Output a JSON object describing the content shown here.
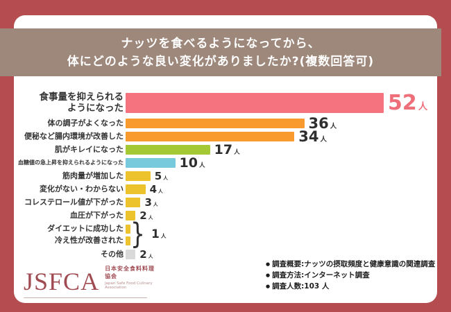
{
  "title": {
    "line1": "ナッツを食べるようになってから、",
    "line2": "体にどのような良い変化がありましたか?(複数回答可)"
  },
  "chart_data": {
    "type": "bar",
    "orientation": "horizontal",
    "unit_suffix": "人",
    "max_value": 52,
    "categories": [
      "食事量を抑えられるようになった",
      "体の調子がよくなった",
      "便秘など腸内環境が改善した",
      "肌がキレイになった",
      "血糖値の急上昇を抑えられるようになった",
      "筋肉量が増加した",
      "変化がない・わからない",
      "コレステロール値が下がった",
      "血圧が下がった",
      "ダイエットに成功した",
      "冷え性が改善された",
      "その他"
    ],
    "values": [
      52,
      36,
      34,
      17,
      10,
      5,
      4,
      3,
      2,
      1,
      1,
      2
    ],
    "rows": [
      {
        "label": "食事量を抑えられる\nようになった",
        "value": 52,
        "color": "#f5737e",
        "show_value": true
      },
      {
        "label": "体の調子がよくなった",
        "value": 36,
        "color": "#f89a2e",
        "show_value": true
      },
      {
        "label": "便秘など腸内環境が改善した",
        "value": 34,
        "color": "#f89a2e",
        "show_value": true
      },
      {
        "label": "肌がキレイになった",
        "value": 17,
        "color": "#a4c935",
        "show_value": true
      },
      {
        "label": "血糖値の急上昇を抑えられるようになった",
        "value": 10,
        "color": "#76cadc",
        "show_value": true
      },
      {
        "label": "筋肉量が増加した",
        "value": 5,
        "color": "#edc32d",
        "show_value": true
      },
      {
        "label": "変化がない・わからない",
        "value": 4,
        "color": "#edc32d",
        "show_value": true
      },
      {
        "label": "コレステロール値が下がった",
        "value": 3,
        "color": "#edc32d",
        "show_value": true
      },
      {
        "label": "血圧が下がった",
        "value": 2,
        "color": "#edc32d",
        "show_value": true
      },
      {
        "label": "ダイエットに成功した",
        "value": 1,
        "color": "#edc32d",
        "show_value": false
      },
      {
        "label": "冷え性が改善された",
        "value": 1,
        "color": "#edc32d",
        "show_value": false
      },
      {
        "label": "その他",
        "value": 2,
        "color": "#d9d9d9",
        "show_value": true
      }
    ],
    "brace": {
      "glyph": "}",
      "value": "1",
      "suffix": "人"
    }
  },
  "footer": {
    "bullet": "●",
    "survey_items": [
      "調査概要:ナッツの摂取頻度と健康意識の関連調査",
      "調査方法:インターネット調査",
      "調査人数:103 人"
    ],
    "logo": {
      "text": "JSFCA",
      "org_jp": "日本安全食料料理協会",
      "org_en": "Japan Safe Food Culinary Association"
    }
  },
  "colors": {
    "background": "#b54c4f",
    "banner": "#9e887b",
    "card": "#ffffff",
    "bar_pink": "#f5737e",
    "bar_orange": "#f89a2e",
    "bar_green": "#a4c935",
    "bar_blue": "#76cadc",
    "bar_yellow": "#edc32d",
    "bar_gray": "#d9d9d9",
    "value_pink_text": "#ee6e79",
    "logo_red": "#a04a52"
  }
}
